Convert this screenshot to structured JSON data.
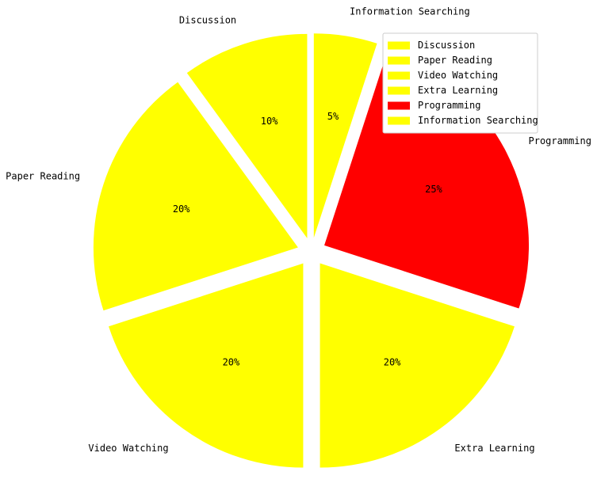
{
  "chart_data": {
    "type": "pie",
    "title": "",
    "slices": [
      {
        "label": "Discussion",
        "value": 10,
        "pct_label": "10%",
        "color": "#ffff00"
      },
      {
        "label": "Paper Reading",
        "value": 20,
        "pct_label": "20%",
        "color": "#ffff00"
      },
      {
        "label": "Video Watching",
        "value": 20,
        "pct_label": "20%",
        "color": "#ffff00"
      },
      {
        "label": "Extra Learning",
        "value": 20,
        "pct_label": "20%",
        "color": "#ffff00"
      },
      {
        "label": "Programming",
        "value": 25,
        "pct_label": "25%",
        "color": "#ff0000"
      },
      {
        "label": "Information Searching",
        "value": 5,
        "pct_label": "5%",
        "color": "#ffff00"
      }
    ],
    "start_angle_deg": 90,
    "direction": "counterclockwise",
    "exploded": true,
    "legend_position": "top-right"
  }
}
